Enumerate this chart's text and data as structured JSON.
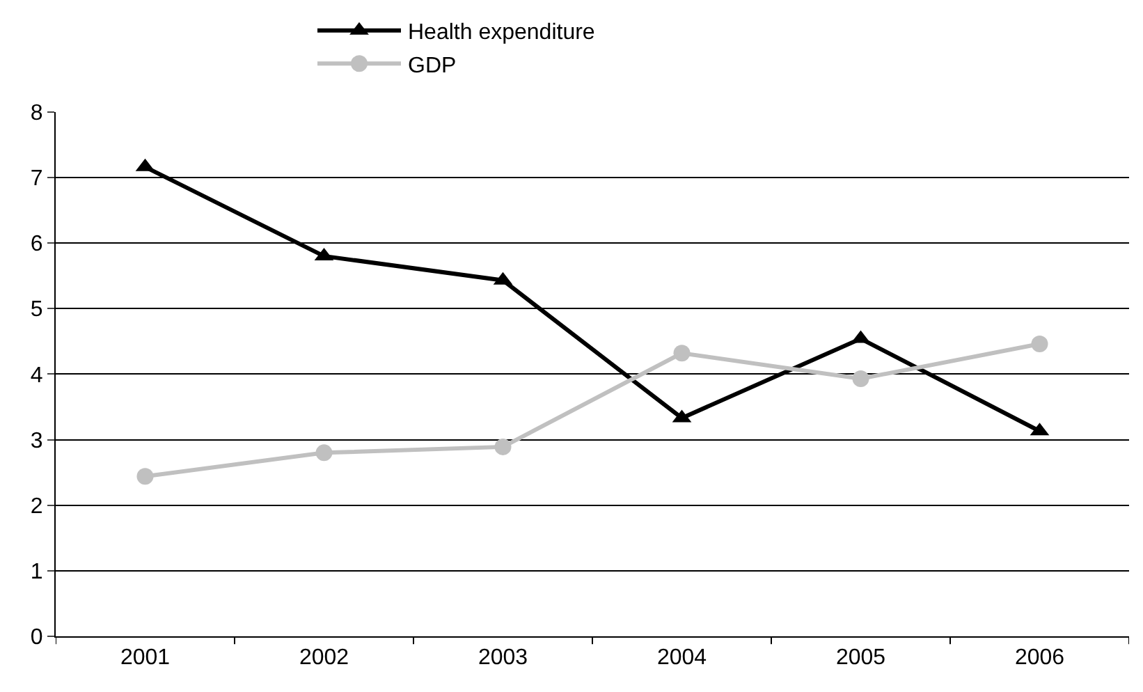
{
  "chart_data": {
    "type": "line",
    "categories": [
      "2001",
      "2002",
      "2003",
      "2004",
      "2005",
      "2006"
    ],
    "series": [
      {
        "name": "Health expenditure",
        "color": "#000000",
        "marker": "triangle",
        "values": [
          7.16,
          5.8,
          5.43,
          3.33,
          4.54,
          3.13
        ]
      },
      {
        "name": "GDP",
        "color": "#c0c0c0",
        "marker": "circle",
        "values": [
          2.44,
          2.8,
          2.89,
          4.32,
          3.93,
          4.46
        ]
      }
    ],
    "ylim": [
      0,
      8
    ],
    "yticks": [
      0,
      1,
      2,
      3,
      4,
      5,
      6,
      7,
      8
    ],
    "grid": "y",
    "legend": "top",
    "line_style": "solid"
  }
}
